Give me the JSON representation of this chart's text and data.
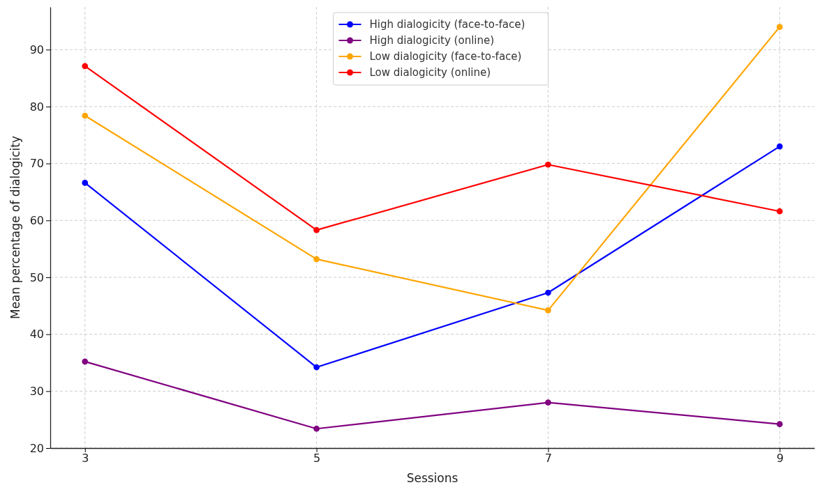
{
  "chart_data": {
    "type": "line",
    "xlabel": "Sessions",
    "ylabel": "Mean percentage of dialogicity",
    "x": [
      3,
      5,
      7,
      9
    ],
    "xlim": [
      2.7,
      9.3
    ],
    "xticks": [
      3,
      5,
      7,
      9
    ],
    "ylim": [
      20,
      97.5
    ],
    "yticks": [
      20,
      30,
      40,
      50,
      60,
      70,
      80,
      90
    ],
    "grid": true,
    "legend": "top",
    "marker": "circle",
    "line_style": "solid",
    "series": [
      {
        "name": "High dialogicity (face-to-face)",
        "color": "#0000ff",
        "values": [
          66.6,
          34.2,
          47.3,
          73.0
        ]
      },
      {
        "name": "High dialogicity (online)",
        "color": "#800080",
        "values": [
          35.2,
          23.4,
          28.0,
          24.2
        ]
      },
      {
        "name": "Low dialogicity (face-to-face)",
        "color": "#ffa500",
        "values": [
          78.4,
          53.2,
          44.2,
          94.0
        ]
      },
      {
        "name": "Low dialogicity (online)",
        "color": "#ff0000",
        "values": [
          87.1,
          58.3,
          69.8,
          61.6
        ]
      }
    ]
  }
}
